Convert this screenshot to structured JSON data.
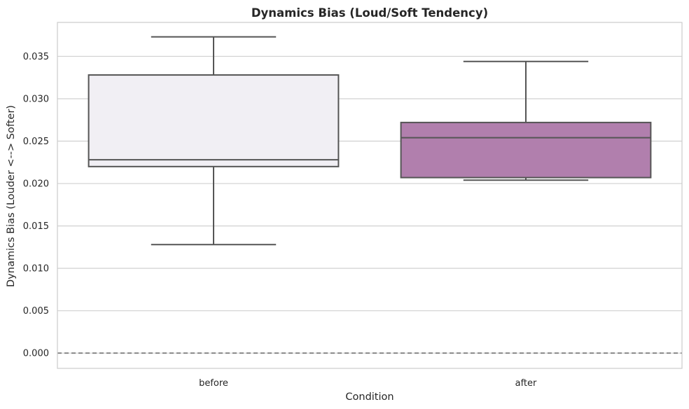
{
  "chart_data": {
    "type": "box",
    "title": "Dynamics Bias (Loud/Soft Tendency)",
    "xlabel": "Condition",
    "ylabel": "Dynamics Bias (Louder <--> Softer)",
    "ylim": [
      -0.0018,
      0.039
    ],
    "yticks": [
      "0.000",
      "0.005",
      "0.010",
      "0.015",
      "0.020",
      "0.025",
      "0.030",
      "0.035"
    ],
    "categories": [
      "before",
      "after"
    ],
    "boxes": [
      {
        "category": "before",
        "whisker_low": 0.0128,
        "q1": 0.022,
        "median": 0.0228,
        "q3": 0.0328,
        "whisker_high": 0.0373,
        "color": "#f1eff4"
      },
      {
        "category": "after",
        "whisker_low": 0.0204,
        "q1": 0.0207,
        "median": 0.0254,
        "q3": 0.0272,
        "whisker_high": 0.0344,
        "color": "#b17fad"
      }
    ],
    "reference_line": {
      "y": 0.0,
      "style": "dashed",
      "color": "#808080"
    },
    "grid": "y",
    "line_color": "#555555",
    "grid_color": "#d0d0d0",
    "frame_color": "#cccccc"
  }
}
